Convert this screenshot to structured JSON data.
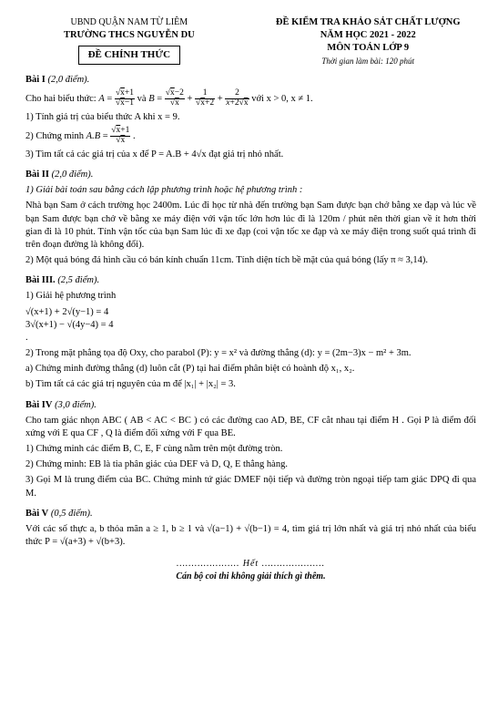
{
  "header": {
    "left": {
      "line1": "UBND QUẬN NAM TỪ LIÊM",
      "line2": "TRƯỜNG THCS NGUYỄN DU",
      "boxed": "ĐỀ CHÍNH THỨC"
    },
    "right": {
      "line1": "ĐỀ KIỂM TRA KHẢO SÁT CHẤT LƯỢNG",
      "line2": "NĂM HỌC 2021 - 2022",
      "line3": "MÔN TOÁN LỚP 9",
      "line4": "Thời gian làm bài: 120 phút"
    }
  },
  "b1": {
    "title": "Bài I",
    "pts": "(2,0 điểm).",
    "intro_a": "Cho hai biểu thức: ",
    "intro_b": " và ",
    "cond": " với x > 0, x ≠ 1.",
    "q1": "1) Tính giá trị của biểu thức A khi x = 9.",
    "q2a": "2) Chứng minh ",
    "q2b": "",
    "q3": "3) Tìm tất cả các giá trị của x để P = A.B + 4√x  đạt giá trị nhỏ nhất."
  },
  "b2": {
    "title": "Bài II",
    "pts": "(2,0 điểm).",
    "q1": "1) Giải bài toán sau bằng cách lập phương trình hoặc hệ phương trình :",
    "para1": "Nhà bạn Sam ở cách trường học 2400m. Lúc đi học từ nhà đến trường bạn Sam được bạn chở bằng xe đạp và lúc về bạn Sam được bạn chở về bằng xe máy điện với vận tốc lớn hơn lúc đi là 120m / phút nên thời gian về ít hơn thời gian đi là 10 phút. Tính vận tốc của bạn Sam lúc đi xe đạp (coi vận tốc xe đạp và xe máy điện trong suốt quá trình đi trên đoạn đường là không đổi).",
    "q2": "2) Một quả bóng đá hình cầu có bán kính chuẩn 11cm. Tính diện tích bề mặt của quả bóng (lấy π ≈ 3,14)."
  },
  "b3": {
    "title": "Bài III.",
    "pts": "(2,5 điểm).",
    "q1": "1) Giải hệ phương trình ",
    "sys1": "√(x+1) + 2√(y−1) = 4",
    "sys2": "3√(x+1) − √(4y−4) = 4",
    "q2": "2) Trong mặt phẳng tọa độ Oxy, cho parabol (P): y = x² và đường thẳng (d): y = (2m−3)x − m² + 3m.",
    "q2a": "a) Chứng minh đường thẳng (d) luôn cắt (P) tại hai điểm phân biệt có hoành độ x₁, x₂.",
    "q2b": "b) Tìm tất cả các giá trị nguyên của m để |x₁| + |x₂| = 3."
  },
  "b4": {
    "title": "Bài IV",
    "pts": "(3,0 điểm).",
    "intro": "Cho tam giác nhọn ABC ( AB < AC < BC ) có các đường cao AD, BE, CF cắt nhau tại điểm H . Gọi P là điểm đối xứng với E qua CF , Q là điểm đối xứng với F qua BE.",
    "q1": "1) Chứng minh các điểm B, C, E, F cùng nằm trên một đường tròn.",
    "q2": "2) Chứng minh: EB là tia phân giác của DEF và D, Q, E thẳng hàng.",
    "q3": "3) Gọi M là trung điểm của BC. Chứng minh tứ giác DMEF nội tiếp và đường tròn ngoại tiếp tam giác DPQ đi qua M."
  },
  "b5": {
    "title": "Bài V",
    "pts": "(0,5 điểm).",
    "para": "Với các số thực a, b thỏa mãn a ≥ 1, b ≥ 1 và √(a−1) + √(b−1) = 4, tìm giá trị lớn nhất và giá trị nhỏ nhất của biểu thức P = √(a+3) + √(b+3)."
  },
  "footer": {
    "end": "………………… Hết …………………",
    "note": "Cán bộ coi thi không giải thích gì thêm."
  }
}
